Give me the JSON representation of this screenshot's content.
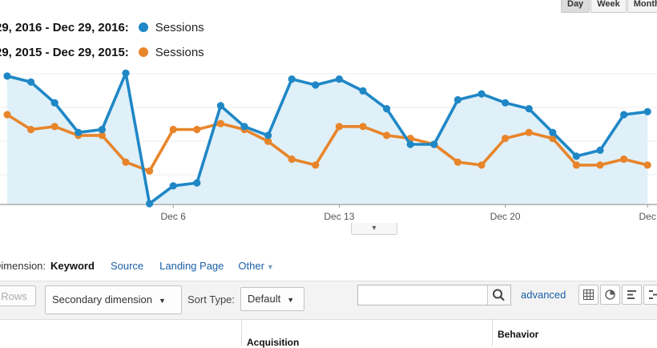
{
  "granularity": {
    "buttons": [
      {
        "label": "Day",
        "active": true
      },
      {
        "label": "Week",
        "active": false
      },
      {
        "label": "Month",
        "active": false
      }
    ]
  },
  "legend": [
    {
      "range": "29, 2016 - Dec 29, 2016:",
      "metric": "Sessions",
      "color": "#1f87c6"
    },
    {
      "range": "29, 2015 - Dec 29, 2015:",
      "metric": "Sessions",
      "color": "#e8852a"
    }
  ],
  "chart_data": {
    "type": "line",
    "x_tick_labels": [
      "Dec 6",
      "Dec 13",
      "Dec 20",
      "Dec"
    ],
    "series": [
      {
        "name": "Sessions",
        "color": "#1f87c6",
        "values": [
          43,
          41,
          34,
          24,
          25,
          44,
          0,
          6,
          7,
          33,
          26,
          23,
          42,
          40,
          42,
          38,
          32,
          20,
          20,
          35,
          37,
          34,
          32,
          24,
          16,
          18,
          30,
          31
        ]
      },
      {
        "name": "Sessions",
        "color": "#e8852a",
        "values": [
          30,
          25,
          26,
          23,
          23,
          14,
          11,
          25,
          25,
          27,
          25,
          21,
          15,
          13,
          26,
          26,
          23,
          22,
          20,
          14,
          13,
          22,
          24,
          22,
          13,
          13,
          15,
          13
        ]
      }
    ],
    "grid": true,
    "area_fill_under_first_series": true
  },
  "dimension_bar": {
    "label": "Dimension:",
    "items": [
      {
        "label": "Keyword",
        "active": true
      },
      {
        "label": "Source",
        "active": false
      },
      {
        "label": "Landing Page",
        "active": false
      },
      {
        "label": "Other",
        "active": false
      }
    ]
  },
  "toolbar": {
    "rows_label": "Rows",
    "secondary_dimension_label": "Secondary dimension",
    "sort_type_label": "Sort Type:",
    "sort_value": "Default",
    "search_value": "",
    "advanced_label": "advanced"
  },
  "table_header": {
    "acquisition": "Acquisition",
    "behavior": "Behavior"
  },
  "icons": [
    "search-icon",
    "table-view-icon",
    "pie-view-icon",
    "performance-view-icon",
    "comparison-view-icon"
  ]
}
